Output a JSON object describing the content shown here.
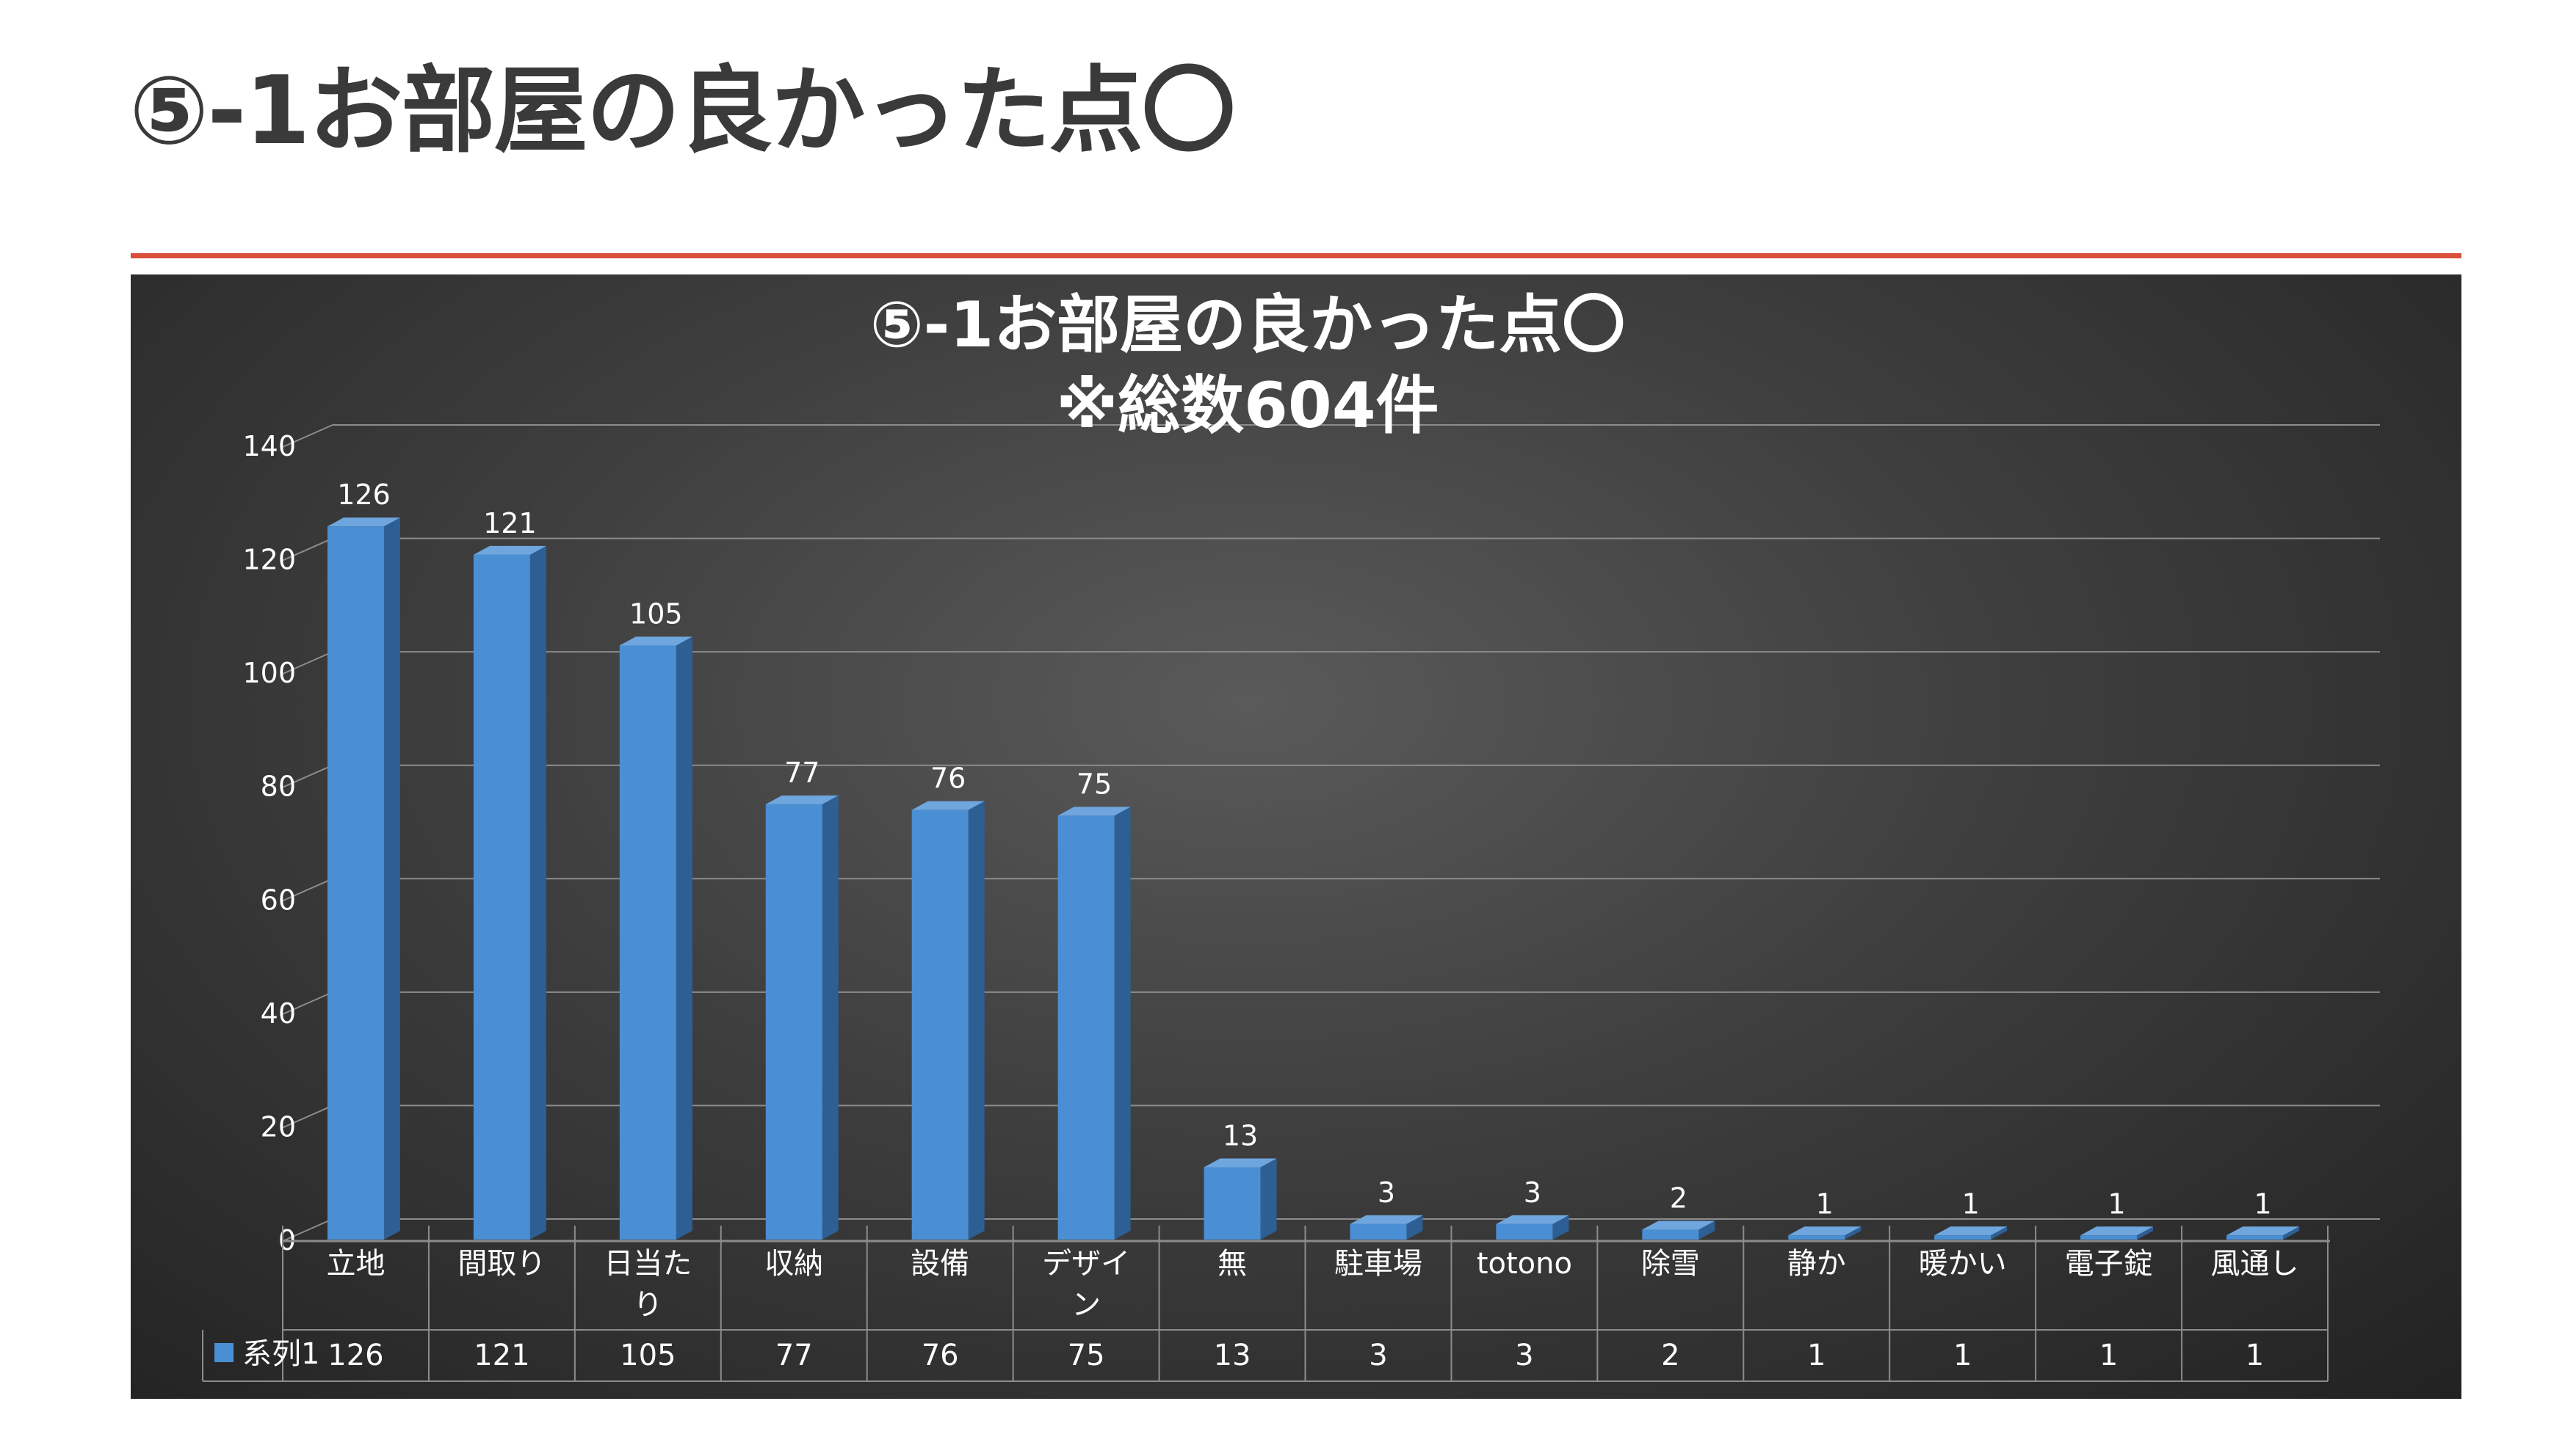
{
  "slide": {
    "title": "⑤-1お部屋の良かった点〇"
  },
  "chart_data": {
    "type": "bar",
    "title": "⑤-1お部屋の良かった点〇",
    "subtitle": "※総数604件",
    "categories": [
      "立地",
      "間取り",
      "日当たり",
      "収納",
      "設備",
      "デザイン",
      "無",
      "駐車場",
      "totono",
      "除雪",
      "静か",
      "暖かい",
      "電子錠",
      "風通し"
    ],
    "category_display": [
      [
        "立地"
      ],
      [
        "間取り"
      ],
      [
        "日当た",
        "り"
      ],
      [
        "収納"
      ],
      [
        "設備"
      ],
      [
        "デザイ",
        "ン"
      ],
      [
        "無"
      ],
      [
        "駐車場"
      ],
      [
        "totono"
      ],
      [
        "除雪"
      ],
      [
        "静か"
      ],
      [
        "暖かい"
      ],
      [
        "電子錠"
      ],
      [
        "風通し"
      ]
    ],
    "series": [
      {
        "name": "系列1",
        "values": [
          126,
          121,
          105,
          77,
          76,
          75,
          13,
          3,
          3,
          2,
          1,
          1,
          1,
          1
        ]
      }
    ],
    "ylim": [
      0,
      140
    ],
    "yticks": [
      0,
      20,
      40,
      60,
      80,
      100,
      120,
      140
    ],
    "grid": true,
    "data_labels": true,
    "data_table": true,
    "colors": {
      "bar_front": "#4a8fd4",
      "bar_side": "#2e5f94",
      "bar_top": "#6fa6de",
      "text": "#ffffff",
      "grid": "#8c8c8c"
    }
  }
}
